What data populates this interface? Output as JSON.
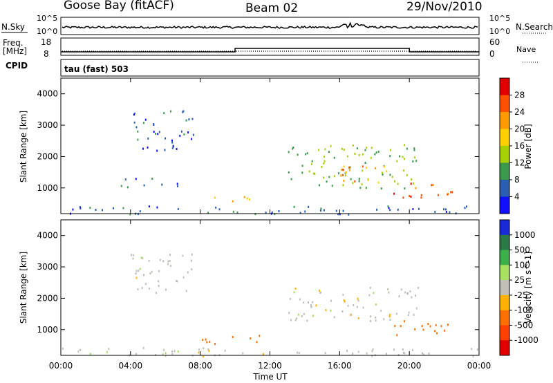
{
  "header": {
    "station": "Goose Bay (fitACF)",
    "beam": "Beam 02",
    "date": "29/Nov/2010"
  },
  "noise_panel": {
    "left_label": "N.Sky",
    "right_label": "N.Search",
    "left_ticks": [
      "10^5",
      "10^0"
    ],
    "right_ticks": [
      "10^5",
      "10^0"
    ]
  },
  "freq_panel": {
    "left_label_line1": "Freq.",
    "left_label_line2": "[MHz]",
    "left_ticks": [
      "18",
      "8"
    ],
    "right_label": "Nave",
    "right_ticks": [
      "60",
      "0"
    ]
  },
  "cpid": {
    "label": "CPID",
    "mode_text": "tau (fast) 503"
  },
  "power_panel": {
    "ylabel": "Slant Range [km]",
    "yticks": [
      "4000",
      "3000",
      "2000",
      "1000"
    ],
    "colorbar_label": "Power [dB]",
    "colorbar_ticks": [
      "28",
      "24",
      "20",
      "16",
      "12",
      "8",
      "4"
    ],
    "colorbar_colors": [
      "#e00000",
      "#ff5000",
      "#ff9a00",
      "#ffd000",
      "#a6d000",
      "#3c9a4c",
      "#2a5eb0",
      "#1010ff"
    ]
  },
  "velocity_panel": {
    "ylabel": "Slant Range [km]",
    "yticks": [
      "4000",
      "3000",
      "2000",
      "1000"
    ],
    "colorbar_label": "Velocity [m s^-1]",
    "colorbar_ticks": [
      "1000",
      "500",
      "100",
      "25",
      "-25",
      "-100",
      "-500",
      "-1000"
    ],
    "colorbar_colors": [
      "#1a2ad8",
      "#2a7a48",
      "#3cb04a",
      "#a8e060",
      "#c0c0b8",
      "#ffb000",
      "#ff7000",
      "#ff4000",
      "#e00000"
    ]
  },
  "xaxis": {
    "ticks": [
      "00:00",
      "04:00",
      "08:00",
      "12:00",
      "16:00",
      "20:00",
      "00:00"
    ],
    "label": "Time UT"
  },
  "chart_data": {
    "type": "heatmap",
    "x_range_hours": [
      0,
      24
    ],
    "y_range_km": [
      180,
      4500
    ],
    "frequency_mhz": [
      {
        "from": 0,
        "to": 10,
        "value": 10
      },
      {
        "from": 10,
        "to": 20,
        "value": 12
      },
      {
        "from": 20,
        "to": 24,
        "value": 10
      }
    ],
    "power_regions": [
      {
        "t0": 4.0,
        "t1": 7.6,
        "r0": 2200,
        "r1": 3500,
        "db": 6
      },
      {
        "t0": 3.2,
        "t1": 6.8,
        "r0": 1050,
        "r1": 1350,
        "db": 6
      },
      {
        "t0": 8.5,
        "t1": 11.5,
        "r0": 600,
        "r1": 800,
        "db": 18
      },
      {
        "t0": 13.0,
        "t1": 20.5,
        "r0": 1000,
        "r1": 2400,
        "db": 12
      },
      {
        "t0": 16.0,
        "t1": 19.0,
        "r0": 1200,
        "r1": 1900,
        "db": 22
      },
      {
        "t0": 19.0,
        "t1": 22.5,
        "r0": 700,
        "r1": 1200,
        "db": 26
      },
      {
        "t0": 0.0,
        "t1": 24.0,
        "r0": 180,
        "r1": 450,
        "db": 6
      }
    ],
    "velocity_regions": [
      {
        "t0": 4.0,
        "t1": 7.6,
        "r0": 2200,
        "r1": 3500,
        "v": 0
      },
      {
        "t0": 8.0,
        "t1": 11.5,
        "r0": 550,
        "r1": 850,
        "v": -150
      },
      {
        "t0": 13.0,
        "t1": 20.5,
        "r0": 1300,
        "r1": 2400,
        "v": 0
      },
      {
        "t0": 19.0,
        "t1": 22.5,
        "r0": 800,
        "r1": 1300,
        "v": -200
      },
      {
        "t0": 0.0,
        "t1": 24.0,
        "r0": 180,
        "r1": 450,
        "v": 0
      }
    ]
  }
}
